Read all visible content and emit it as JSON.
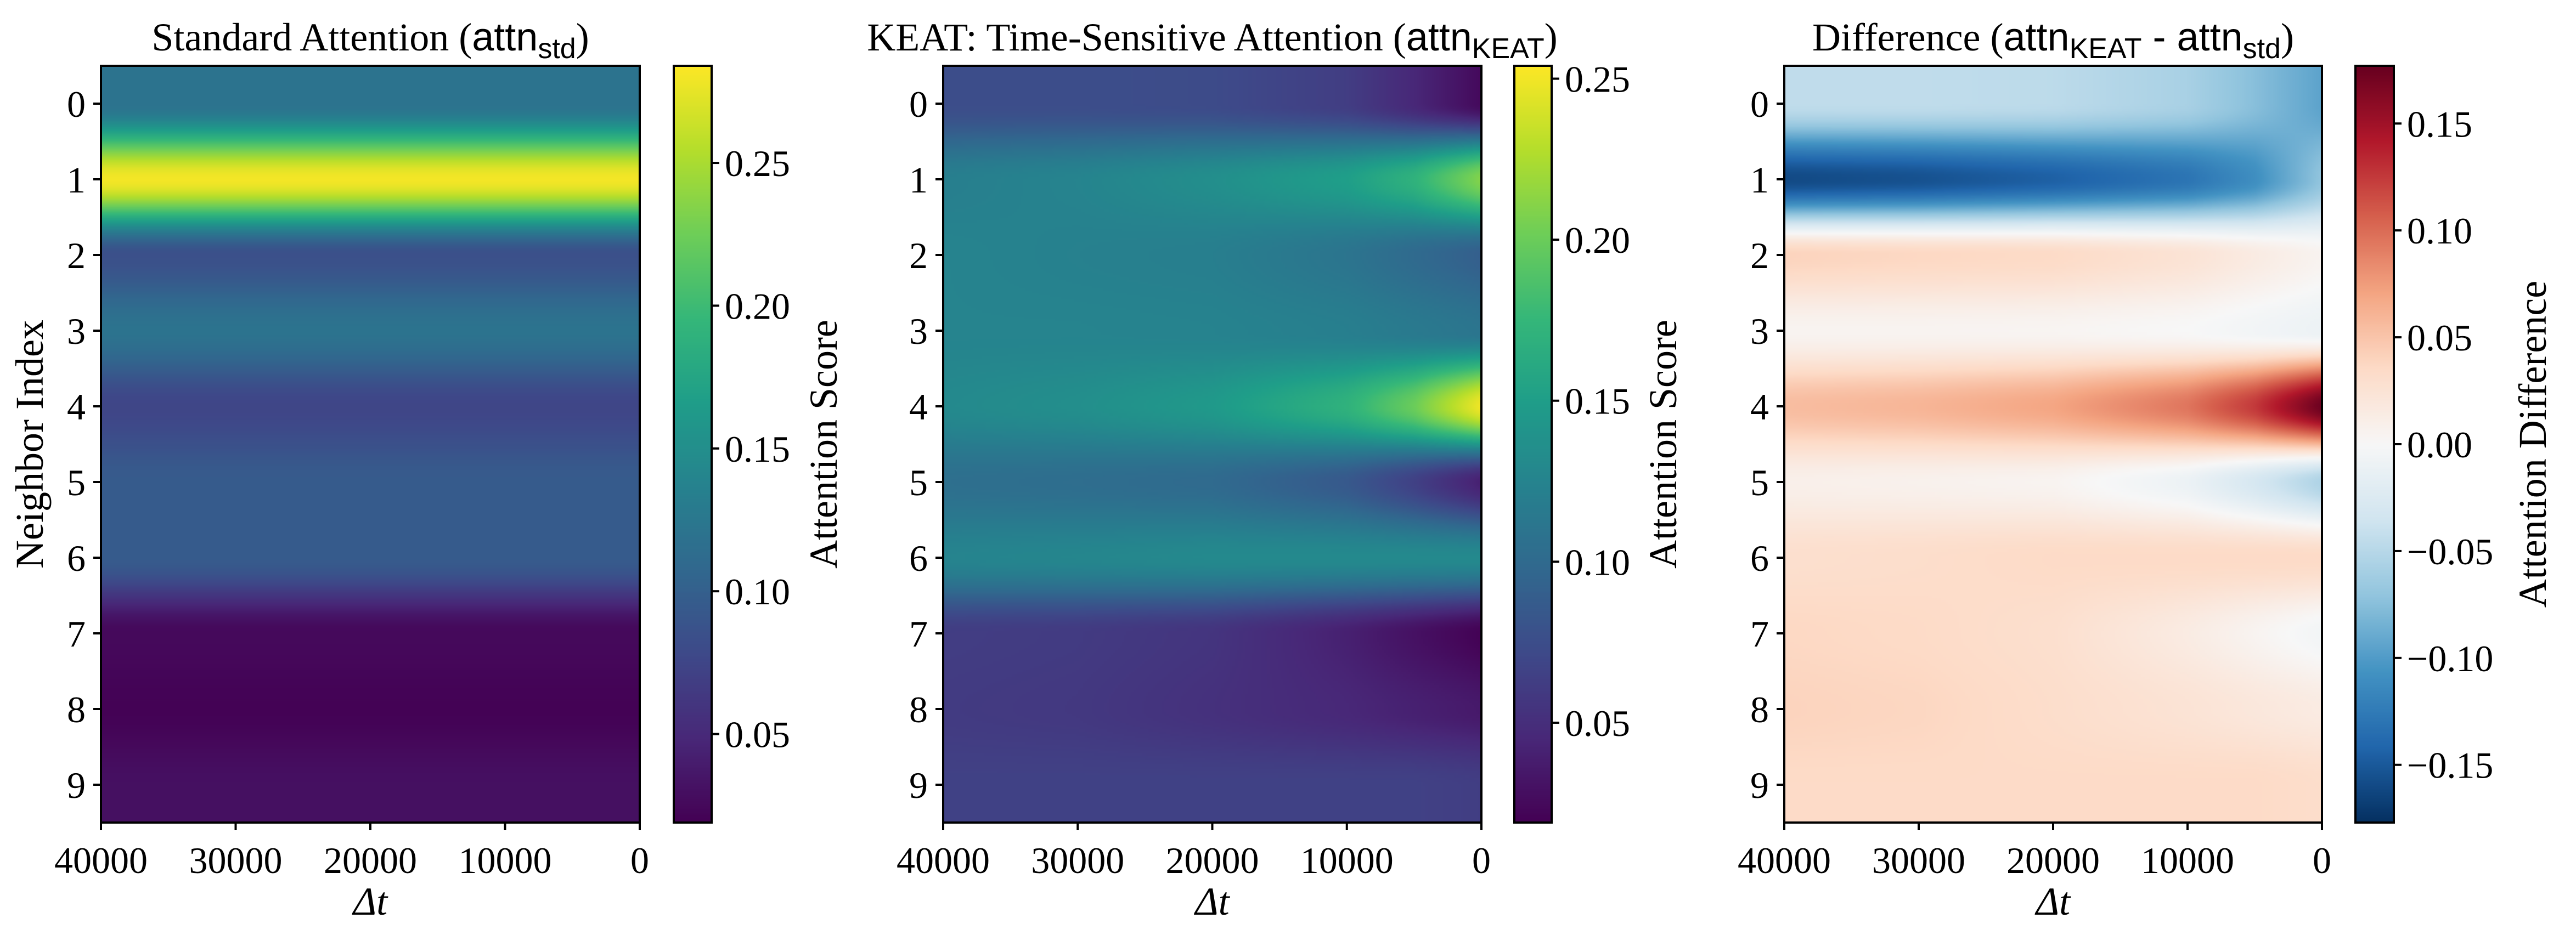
{
  "chart_data": [
    {
      "type": "heatmap",
      "title": {
        "prefix": "Standard Attention (",
        "attn": "attn",
        "sub": "std",
        "mid": "",
        "attn2": "",
        "sub2": "",
        "suffix": ")"
      },
      "xlabel": "Δt",
      "ylabel": "Neighbor Index",
      "colorbar_label": "Attention Score",
      "colormap": "viridis",
      "x_ticks": [
        40000,
        30000,
        20000,
        10000,
        0
      ],
      "xlim": [
        40000,
        0
      ],
      "y_ticks": [
        0,
        1,
        2,
        3,
        4,
        5,
        6,
        7,
        8,
        9
      ],
      "colorbar_ticks": [
        "0.05",
        "0.10",
        "0.15",
        "0.20",
        "0.25"
      ],
      "clim": [
        0.019,
        0.284
      ],
      "dt": [
        40000,
        30000,
        20000,
        10000,
        5000,
        0
      ],
      "rows": [
        [
          0.12,
          0.12,
          0.12,
          0.12,
          0.12,
          0.12
        ],
        [
          0.28,
          0.28,
          0.28,
          0.28,
          0.28,
          0.28
        ],
        [
          0.085,
          0.085,
          0.085,
          0.085,
          0.085,
          0.085
        ],
        [
          0.12,
          0.12,
          0.12,
          0.12,
          0.12,
          0.12
        ],
        [
          0.075,
          0.075,
          0.075,
          0.075,
          0.075,
          0.075
        ],
        [
          0.095,
          0.095,
          0.095,
          0.095,
          0.095,
          0.095
        ],
        [
          0.095,
          0.095,
          0.095,
          0.095,
          0.095,
          0.095
        ],
        [
          0.025,
          0.025,
          0.025,
          0.025,
          0.025,
          0.025
        ],
        [
          0.02,
          0.02,
          0.02,
          0.02,
          0.02,
          0.02
        ],
        [
          0.03,
          0.03,
          0.03,
          0.03,
          0.03,
          0.03
        ]
      ]
    },
    {
      "type": "heatmap",
      "title": {
        "prefix": "KEAT: Time-Sensitive Attention (",
        "attn": "attn",
        "sub": "KEAT",
        "mid": "",
        "attn2": "",
        "sub2": "",
        "suffix": ")"
      },
      "xlabel": "Δt",
      "ylabel": "",
      "colorbar_label": "Attention Score",
      "colormap": "viridis",
      "x_ticks": [
        40000,
        30000,
        20000,
        10000,
        0
      ],
      "xlim": [
        40000,
        0
      ],
      "y_ticks": [
        0,
        1,
        2,
        3,
        4,
        5,
        6,
        7,
        8,
        9
      ],
      "colorbar_ticks": [
        "0.05",
        "0.10",
        "0.15",
        "0.20",
        "0.25"
      ],
      "clim": [
        0.019,
        0.254
      ],
      "dt": [
        40000,
        30000,
        20000,
        10000,
        5000,
        0
      ],
      "rows": [
        [
          0.075,
          0.075,
          0.073,
          0.062,
          0.045,
          0.025
        ],
        [
          0.12,
          0.125,
          0.135,
          0.15,
          0.17,
          0.21
        ],
        [
          0.125,
          0.122,
          0.12,
          0.11,
          0.1,
          0.09
        ],
        [
          0.125,
          0.125,
          0.124,
          0.12,
          0.115,
          0.11
        ],
        [
          0.13,
          0.135,
          0.145,
          0.17,
          0.2,
          0.25
        ],
        [
          0.105,
          0.103,
          0.1,
          0.085,
          0.065,
          0.04
        ],
        [
          0.125,
          0.127,
          0.13,
          0.13,
          0.13,
          0.13
        ],
        [
          0.062,
          0.06,
          0.055,
          0.04,
          0.03,
          0.02
        ],
        [
          0.06,
          0.058,
          0.052,
          0.045,
          0.04,
          0.035
        ],
        [
          0.065,
          0.065,
          0.065,
          0.065,
          0.065,
          0.062
        ]
      ]
    },
    {
      "type": "heatmap",
      "title": {
        "prefix": "Difference (",
        "attn": "attn",
        "sub": "KEAT",
        "mid": " - ",
        "attn2": "attn",
        "sub2": "std",
        "suffix": ")"
      },
      "xlabel": "Δt",
      "ylabel": "",
      "colorbar_label": "Attention Difference",
      "colormap": "RdBu_r",
      "x_ticks": [
        40000,
        30000,
        20000,
        10000,
        0
      ],
      "xlim": [
        40000,
        0
      ],
      "y_ticks": [
        0,
        1,
        2,
        3,
        4,
        5,
        6,
        7,
        8,
        9
      ],
      "colorbar_ticks": [
        "−0.15",
        "−0.10",
        "−0.05",
        "0.00",
        "0.05",
        "0.10",
        "0.15"
      ],
      "clim": [
        -0.177,
        0.177
      ],
      "values": "KEAT minus standard"
    }
  ]
}
